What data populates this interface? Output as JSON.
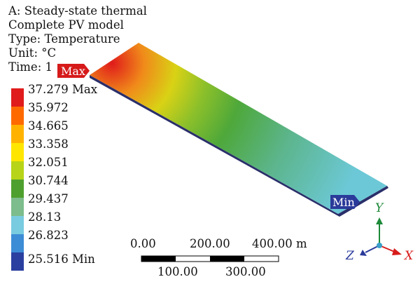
{
  "header": {
    "line1": "A: Steady-state thermal",
    "line2": "Complete PV model",
    "line3": "Type: Temperature",
    "line4": "Unit: °C",
    "line5": "Time: 1"
  },
  "markers": {
    "max": "Max",
    "min": "Min"
  },
  "legend": {
    "items": [
      {
        "label": "37.279 Max",
        "color": "#e01b1b"
      },
      {
        "label": "35.972",
        "color": "#ff6a00"
      },
      {
        "label": "34.665",
        "color": "#ffb300"
      },
      {
        "label": "33.358",
        "color": "#ffe600"
      },
      {
        "label": "32.051",
        "color": "#b8d418"
      },
      {
        "label": "30.744",
        "color": "#4ea02e"
      },
      {
        "label": "29.437",
        "color": "#7dbc8c"
      },
      {
        "label": "28.13",
        "color": "#79cbe0"
      },
      {
        "label": "26.823",
        "color": "#3d8cd6"
      },
      {
        "label": "25.516 Min",
        "color": "#2a3fa0"
      }
    ]
  },
  "scale_bar": {
    "top_labels": [
      "0.00",
      "200.00",
      "400.00 m"
    ],
    "bottom_labels": [
      "100.00",
      "300.00"
    ]
  },
  "triad": {
    "x": "X",
    "y": "Y",
    "z": "Z",
    "x_color": "#d81c1c",
    "y_color": "#1e8a3a",
    "z_color": "#2a3a9a"
  }
}
